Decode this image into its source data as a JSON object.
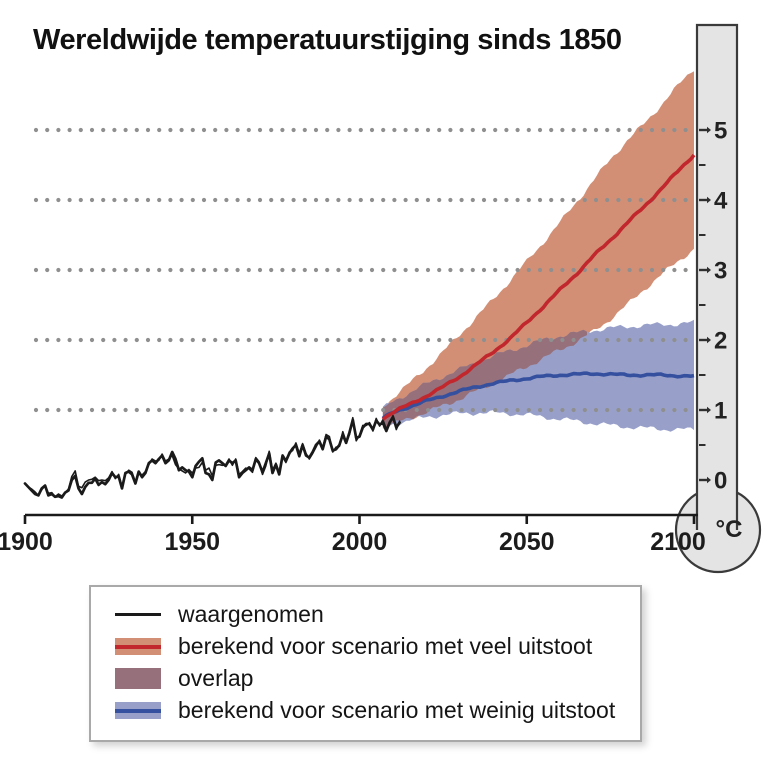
{
  "colors": {
    "background": "#ffffff",
    "axis": "#1a1a1a",
    "grid_dots": "#8f8f8f",
    "observed_line": "#1a1a1a",
    "high_band": "#d28f75",
    "high_line": "#c1272d",
    "overlap_band": "#96707a",
    "low_band": "#98a0ca",
    "low_line": "#35509f",
    "thermometer_fill": "#e4e4e4",
    "thermometer_border": "#3a3a3a",
    "tick_label": "#222222"
  },
  "legend": {
    "items": [
      {
        "label": "waargenomen",
        "kind": "line",
        "line": "#1a1a1a"
      },
      {
        "label": "berekend voor scenario met veel uitstoot",
        "kind": "band",
        "band": "#d28f75",
        "line": "#c1272d"
      },
      {
        "label": "overlap",
        "kind": "solid",
        "band": "#96707a"
      },
      {
        "label": "berekend voor scenario met weinig uitstoot",
        "kind": "band",
        "band": "#98a0ca",
        "line": "#35509f"
      }
    ]
  },
  "thermometer": {
    "unit_label": "°C",
    "tick_values": [
      0,
      1,
      2,
      3,
      4,
      5
    ],
    "minor_tick_values": [
      0.5,
      1.5,
      2.5,
      3.5,
      4.5
    ]
  },
  "chart_data": {
    "type": "line",
    "title": "Wereldwijde temperatuurstijging sinds 1850",
    "xlabel": "",
    "ylabel": "°C",
    "x_ticks": [
      1900,
      1950,
      2000,
      2050,
      2100
    ],
    "y_ticks": [
      0,
      1,
      2,
      3,
      4,
      5
    ],
    "xlim": [
      1900,
      2100
    ],
    "ylim": [
      -0.6,
      6.0
    ],
    "grid": "dotted horizontal lines at 1,2,3,4,5 °C",
    "legend_position": "below chart",
    "series": [
      {
        "name": "waargenomen",
        "type": "line",
        "color": "#1a1a1a",
        "x_start": 1900,
        "x_step": 1,
        "values": [
          -0.05,
          -0.1,
          -0.15,
          -0.2,
          -0.22,
          -0.12,
          -0.08,
          -0.22,
          -0.2,
          -0.24,
          -0.23,
          -0.25,
          -0.18,
          -0.15,
          0.0,
          0.06,
          -0.12,
          -0.2,
          -0.1,
          -0.04,
          -0.04,
          0.02,
          -0.07,
          -0.03,
          -0.06,
          0.0,
          0.1,
          0.04,
          0.05,
          -0.12,
          0.1,
          0.12,
          0.08,
          -0.05,
          0.12,
          0.04,
          0.1,
          0.24,
          0.28,
          0.24,
          0.3,
          0.35,
          0.24,
          0.28,
          0.4,
          0.3,
          0.14,
          0.18,
          0.14,
          0.12,
          0.04,
          0.2,
          0.26,
          0.31,
          0.1,
          0.08,
          0.0,
          0.25,
          0.28,
          0.24,
          0.2,
          0.28,
          0.24,
          0.28,
          0.04,
          0.1,
          0.14,
          0.18,
          0.14,
          0.3,
          0.24,
          0.11,
          0.24,
          0.38,
          0.1,
          0.22,
          0.08,
          0.35,
          0.27,
          0.38,
          0.45,
          0.5,
          0.34,
          0.5,
          0.35,
          0.32,
          0.4,
          0.5,
          0.55,
          0.44,
          0.62,
          0.58,
          0.42,
          0.44,
          0.5,
          0.65,
          0.53,
          0.68,
          0.86,
          0.6,
          0.62,
          0.75,
          0.8,
          0.8,
          0.72,
          0.85,
          0.79,
          0.82,
          0.7,
          0.82,
          0.9,
          0.75,
          0.82
        ],
        "second_trace_offset": [
          0,
          0,
          0.02,
          0.03,
          0,
          -0.02,
          0,
          0.03,
          0.02,
          0,
          0.03,
          0.02,
          0,
          0.02,
          0.05,
          0.07,
          0.03,
          0.09,
          0.07,
          0.04,
          0.05,
          0.02,
          0.06,
          0.03,
          0.05,
          0.03,
          0.02,
          -0.02,
          0.03,
          0.02,
          -0.02,
          0.02,
          0.03,
          0.02,
          -0.02,
          0.03,
          0.02,
          -0.02,
          0.02,
          0.03,
          -0.02,
          0.02,
          0.03,
          0.02,
          -0.05,
          -0.08,
          0.02,
          -0.05,
          -0.04,
          0.03,
          0.06,
          -0.03,
          -0.08,
          -0.06,
          0.04,
          0.09,
          0.06,
          -0.04,
          -0.06,
          -0.03,
          0.02,
          0.02,
          -0.03,
          0.02,
          0.04,
          0.02,
          0.03,
          -0.02,
          -0.03,
          0.02,
          0.02,
          -0.03,
          -0.04,
          0.03,
          0.04,
          0.02,
          0.03,
          -0.02,
          -0.02,
          0.02,
          -0.03,
          0.03,
          0.04,
          0.02,
          0.03,
          -0.02,
          -0.02,
          -0.03,
          0.02,
          0.02,
          0.03,
          0.04,
          -0.02,
          0.03,
          -0.02,
          0.04,
          0.02,
          -0.03,
          0.03,
          -0.04,
          0.02,
          0.03,
          -0.02,
          0.02,
          -0.02,
          0.03,
          -0.02,
          0.04,
          0.03,
          -0.02,
          0.02,
          -0.03,
          0.02
        ]
      },
      {
        "name": "berekend voor scenario met veel uitstoot",
        "type": "band+line",
        "line_color": "#c1272d",
        "band_color": "#d28f75",
        "x": [
          2007,
          2010,
          2015,
          2020,
          2025,
          2030,
          2035,
          2040,
          2045,
          2050,
          2055,
          2060,
          2065,
          2070,
          2075,
          2080,
          2085,
          2090,
          2095,
          2100
        ],
        "median": [
          0.88,
          0.97,
          1.08,
          1.2,
          1.33,
          1.48,
          1.65,
          1.83,
          2.02,
          2.25,
          2.48,
          2.72,
          2.95,
          3.2,
          3.43,
          3.67,
          3.9,
          4.15,
          4.4,
          4.65
        ],
        "upper": [
          1.05,
          1.18,
          1.38,
          1.6,
          1.83,
          2.08,
          2.33,
          2.58,
          2.85,
          3.12,
          3.4,
          3.68,
          3.98,
          4.28,
          4.58,
          4.85,
          5.08,
          5.35,
          5.62,
          5.88
        ],
        "lower": [
          0.74,
          0.8,
          0.88,
          0.97,
          1.06,
          1.16,
          1.27,
          1.38,
          1.5,
          1.62,
          1.74,
          1.86,
          1.98,
          2.12,
          2.3,
          2.5,
          2.72,
          2.92,
          3.12,
          3.3
        ]
      },
      {
        "name": "overlap",
        "type": "band-intersection",
        "color": "#96707a",
        "description": "intersection of the two scenario bands"
      },
      {
        "name": "berekend voor scenario met weinig uitstoot",
        "type": "band+line",
        "line_color": "#35509f",
        "band_color": "#98a0ca",
        "x": [
          2007,
          2010,
          2015,
          2020,
          2025,
          2030,
          2035,
          2040,
          2045,
          2050,
          2055,
          2060,
          2065,
          2070,
          2075,
          2080,
          2085,
          2090,
          2095,
          2100
        ],
        "median": [
          0.88,
          0.96,
          1.05,
          1.13,
          1.2,
          1.27,
          1.33,
          1.38,
          1.42,
          1.45,
          1.48,
          1.5,
          1.51,
          1.52,
          1.51,
          1.5,
          1.5,
          1.5,
          1.49,
          1.48
        ],
        "upper": [
          1.02,
          1.12,
          1.25,
          1.37,
          1.48,
          1.58,
          1.68,
          1.77,
          1.85,
          1.92,
          2.0,
          2.06,
          2.1,
          2.14,
          2.17,
          2.19,
          2.21,
          2.22,
          2.23,
          2.25
        ],
        "lower": [
          0.74,
          0.8,
          0.85,
          0.9,
          0.93,
          0.95,
          0.96,
          0.96,
          0.95,
          0.93,
          0.9,
          0.87,
          0.84,
          0.81,
          0.78,
          0.76,
          0.74,
          0.73,
          0.72,
          0.72
        ]
      }
    ]
  }
}
